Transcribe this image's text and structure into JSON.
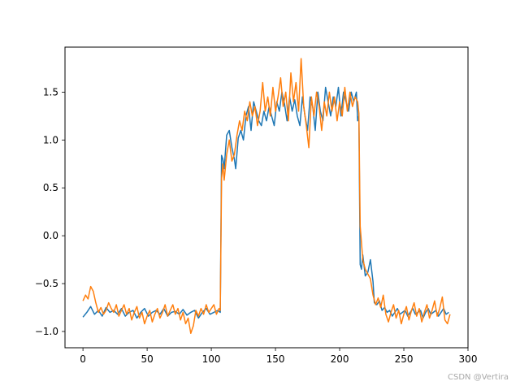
{
  "chart_data": {
    "type": "line",
    "title": "",
    "xlabel": "",
    "ylabel": "",
    "xlim": [
      -14,
      300
    ],
    "ylim": [
      -1.17,
      1.97
    ],
    "x_ticks": [
      0,
      50,
      100,
      150,
      200,
      250,
      300
    ],
    "x_tick_labels": [
      "0",
      "50",
      "100",
      "150",
      "200",
      "250",
      "300"
    ],
    "y_ticks": [
      -1.0,
      -0.5,
      0.0,
      0.5,
      1.0,
      1.5
    ],
    "y_tick_labels": [
      "−1.0",
      "−0.5",
      "0.0",
      "0.5",
      "1.0",
      "1.5"
    ],
    "grid": false,
    "legend": "none",
    "series": [
      {
        "color": "#1f77b4",
        "points": [
          [
            0,
            -0.85
          ],
          [
            3,
            -0.8
          ],
          [
            6,
            -0.74
          ],
          [
            9,
            -0.82
          ],
          [
            12,
            -0.78
          ],
          [
            15,
            -0.84
          ],
          [
            18,
            -0.75
          ],
          [
            21,
            -0.8
          ],
          [
            24,
            -0.78
          ],
          [
            27,
            -0.82
          ],
          [
            30,
            -0.76
          ],
          [
            33,
            -0.84
          ],
          [
            36,
            -0.8
          ],
          [
            39,
            -0.78
          ],
          [
            42,
            -0.86
          ],
          [
            45,
            -0.8
          ],
          [
            48,
            -0.76
          ],
          [
            51,
            -0.84
          ],
          [
            54,
            -0.8
          ],
          [
            57,
            -0.78
          ],
          [
            60,
            -0.82
          ],
          [
            63,
            -0.76
          ],
          [
            66,
            -0.84
          ],
          [
            69,
            -0.8
          ],
          [
            72,
            -0.79
          ],
          [
            75,
            -0.82
          ],
          [
            78,
            -0.77
          ],
          [
            81,
            -0.83
          ],
          [
            84,
            -0.8
          ],
          [
            87,
            -0.78
          ],
          [
            90,
            -0.86
          ],
          [
            93,
            -0.8
          ],
          [
            96,
            -0.76
          ],
          [
            99,
            -0.82
          ],
          [
            102,
            -0.8
          ],
          [
            105,
            -0.78
          ],
          [
            107,
            -0.8
          ],
          [
            108,
            0.84
          ],
          [
            109,
            0.8
          ],
          [
            110,
            0.7
          ],
          [
            112,
            1.05
          ],
          [
            114,
            1.1
          ],
          [
            116,
            0.92
          ],
          [
            118,
            0.8
          ],
          [
            119,
            0.7
          ],
          [
            121,
            1.02
          ],
          [
            123,
            1.1
          ],
          [
            125,
            1.0
          ],
          [
            127,
            1.25
          ],
          [
            129,
            1.35
          ],
          [
            131,
            1.1
          ],
          [
            133,
            1.4
          ],
          [
            135,
            1.3
          ],
          [
            137,
            1.2
          ],
          [
            139,
            1.15
          ],
          [
            141,
            1.3
          ],
          [
            143,
            1.2
          ],
          [
            145,
            1.35
          ],
          [
            147,
            1.25
          ],
          [
            149,
            1.15
          ],
          [
            151,
            1.4
          ],
          [
            153,
            1.3
          ],
          [
            155,
            1.5
          ],
          [
            157,
            1.38
          ],
          [
            159,
            1.2
          ],
          [
            161,
            1.45
          ],
          [
            163,
            1.3
          ],
          [
            165,
            1.42
          ],
          [
            167,
            1.25
          ],
          [
            169,
            1.15
          ],
          [
            171,
            1.45
          ],
          [
            173,
            1.25
          ],
          [
            175,
            1.1
          ],
          [
            177,
            1.45
          ],
          [
            179,
            1.35
          ],
          [
            181,
            1.1
          ],
          [
            183,
            1.5
          ],
          [
            185,
            1.3
          ],
          [
            187,
            1.2
          ],
          [
            189,
            1.55
          ],
          [
            191,
            1.4
          ],
          [
            193,
            1.25
          ],
          [
            195,
            1.45
          ],
          [
            197,
            1.35
          ],
          [
            199,
            1.55
          ],
          [
            201,
            1.25
          ],
          [
            203,
            1.5
          ],
          [
            205,
            1.4
          ],
          [
            207,
            1.3
          ],
          [
            209,
            1.5
          ],
          [
            211,
            1.4
          ],
          [
            213,
            1.5
          ],
          [
            214,
            1.2
          ],
          [
            215,
            1.25
          ],
          [
            216,
            -0.3
          ],
          [
            217,
            -0.35
          ],
          [
            218,
            -0.2
          ],
          [
            220,
            -0.42
          ],
          [
            222,
            -0.38
          ],
          [
            224,
            -0.25
          ],
          [
            226,
            -0.48
          ],
          [
            227,
            -0.7
          ],
          [
            229,
            -0.72
          ],
          [
            231,
            -0.68
          ],
          [
            233,
            -0.78
          ],
          [
            235,
            -0.75
          ],
          [
            237,
            -0.8
          ],
          [
            239,
            -0.78
          ],
          [
            241,
            -0.84
          ],
          [
            243,
            -0.8
          ],
          [
            245,
            -0.76
          ],
          [
            247,
            -0.82
          ],
          [
            249,
            -0.8
          ],
          [
            251,
            -0.78
          ],
          [
            253,
            -0.84
          ],
          [
            255,
            -0.8
          ],
          [
            257,
            -0.76
          ],
          [
            259,
            -0.82
          ],
          [
            261,
            -0.8
          ],
          [
            263,
            -0.78
          ],
          [
            265,
            -0.86
          ],
          [
            267,
            -0.8
          ],
          [
            269,
            -0.76
          ],
          [
            271,
            -0.82
          ],
          [
            273,
            -0.8
          ],
          [
            275,
            -0.78
          ],
          [
            277,
            -0.84
          ],
          [
            279,
            -0.8
          ],
          [
            281,
            -0.76
          ],
          [
            283,
            -0.82
          ],
          [
            285,
            -0.8
          ]
        ]
      },
      {
        "color": "#ff7f0e",
        "points": [
          [
            0,
            -0.68
          ],
          [
            2,
            -0.62
          ],
          [
            4,
            -0.66
          ],
          [
            6,
            -0.53
          ],
          [
            8,
            -0.58
          ],
          [
            10,
            -0.7
          ],
          [
            12,
            -0.8
          ],
          [
            14,
            -0.75
          ],
          [
            16,
            -0.82
          ],
          [
            18,
            -0.78
          ],
          [
            20,
            -0.7
          ],
          [
            22,
            -0.76
          ],
          [
            24,
            -0.8
          ],
          [
            26,
            -0.72
          ],
          [
            28,
            -0.84
          ],
          [
            30,
            -0.78
          ],
          [
            32,
            -0.72
          ],
          [
            34,
            -0.82
          ],
          [
            36,
            -0.76
          ],
          [
            38,
            -0.88
          ],
          [
            40,
            -0.8
          ],
          [
            42,
            -0.74
          ],
          [
            44,
            -0.86
          ],
          [
            46,
            -0.8
          ],
          [
            48,
            -0.92
          ],
          [
            50,
            -0.84
          ],
          [
            52,
            -0.78
          ],
          [
            54,
            -0.9
          ],
          [
            56,
            -0.82
          ],
          [
            58,
            -0.76
          ],
          [
            60,
            -0.86
          ],
          [
            62,
            -0.8
          ],
          [
            64,
            -0.72
          ],
          [
            66,
            -0.84
          ],
          [
            68,
            -0.78
          ],
          [
            70,
            -0.72
          ],
          [
            72,
            -0.82
          ],
          [
            74,
            -0.76
          ],
          [
            76,
            -0.88
          ],
          [
            78,
            -0.8
          ],
          [
            80,
            -0.92
          ],
          [
            82,
            -0.86
          ],
          [
            84,
            -1.02
          ],
          [
            86,
            -0.94
          ],
          [
            88,
            -0.78
          ],
          [
            90,
            -0.84
          ],
          [
            92,
            -0.76
          ],
          [
            94,
            -0.82
          ],
          [
            96,
            -0.72
          ],
          [
            98,
            -0.8
          ],
          [
            100,
            -0.76
          ],
          [
            102,
            -0.72
          ],
          [
            104,
            -0.82
          ],
          [
            106,
            -0.76
          ],
          [
            107,
            -0.78
          ],
          [
            108,
            0.6
          ],
          [
            109,
            0.75
          ],
          [
            110,
            0.58
          ],
          [
            112,
            0.85
          ],
          [
            114,
            1.0
          ],
          [
            116,
            0.78
          ],
          [
            118,
            0.85
          ],
          [
            120,
            1.05
          ],
          [
            122,
            1.2
          ],
          [
            124,
            1.1
          ],
          [
            126,
            1.3
          ],
          [
            128,
            1.2
          ],
          [
            130,
            1.4
          ],
          [
            132,
            1.25
          ],
          [
            134,
            1.35
          ],
          [
            136,
            1.15
          ],
          [
            138,
            1.3
          ],
          [
            140,
            1.6
          ],
          [
            142,
            1.3
          ],
          [
            144,
            1.45
          ],
          [
            146,
            1.25
          ],
          [
            148,
            1.55
          ],
          [
            150,
            1.3
          ],
          [
            152,
            1.45
          ],
          [
            154,
            1.65
          ],
          [
            156,
            1.35
          ],
          [
            158,
            1.5
          ],
          [
            160,
            1.2
          ],
          [
            162,
            1.7
          ],
          [
            164,
            1.4
          ],
          [
            166,
            1.6
          ],
          [
            168,
            1.3
          ],
          [
            170,
            1.85
          ],
          [
            172,
            1.35
          ],
          [
            174,
            1.15
          ],
          [
            176,
            0.92
          ],
          [
            178,
            1.45
          ],
          [
            180,
            1.25
          ],
          [
            182,
            1.5
          ],
          [
            184,
            1.35
          ],
          [
            186,
            1.1
          ],
          [
            188,
            1.4
          ],
          [
            190,
            1.25
          ],
          [
            192,
            1.5
          ],
          [
            194,
            1.3
          ],
          [
            196,
            1.45
          ],
          [
            198,
            1.2
          ],
          [
            200,
            1.4
          ],
          [
            202,
            1.25
          ],
          [
            204,
            1.55
          ],
          [
            206,
            1.3
          ],
          [
            208,
            1.5
          ],
          [
            210,
            1.35
          ],
          [
            212,
            1.45
          ],
          [
            214,
            1.4
          ],
          [
            215,
            1.28
          ],
          [
            216,
            0.1
          ],
          [
            218,
            -0.25
          ],
          [
            220,
            -0.35
          ],
          [
            222,
            -0.4
          ],
          [
            224,
            -0.45
          ],
          [
            226,
            -0.62
          ],
          [
            228,
            -0.72
          ],
          [
            230,
            -0.65
          ],
          [
            232,
            -0.75
          ],
          [
            234,
            -0.62
          ],
          [
            236,
            -0.82
          ],
          [
            238,
            -0.9
          ],
          [
            240,
            -0.8
          ],
          [
            242,
            -0.72
          ],
          [
            244,
            -0.86
          ],
          [
            246,
            -0.78
          ],
          [
            248,
            -0.92
          ],
          [
            250,
            -0.82
          ],
          [
            252,
            -0.74
          ],
          [
            254,
            -0.88
          ],
          [
            256,
            -0.78
          ],
          [
            258,
            -0.7
          ],
          [
            260,
            -0.84
          ],
          [
            262,
            -0.76
          ],
          [
            264,
            -0.9
          ],
          [
            266,
            -0.8
          ],
          [
            268,
            -0.72
          ],
          [
            270,
            -0.86
          ],
          [
            272,
            -0.78
          ],
          [
            274,
            -0.68
          ],
          [
            276,
            -0.84
          ],
          [
            278,
            -0.76
          ],
          [
            280,
            -0.64
          ],
          [
            282,
            -0.88
          ],
          [
            284,
            -0.92
          ],
          [
            286,
            -0.82
          ]
        ]
      }
    ]
  },
  "watermark": "CSDN @Vertira"
}
